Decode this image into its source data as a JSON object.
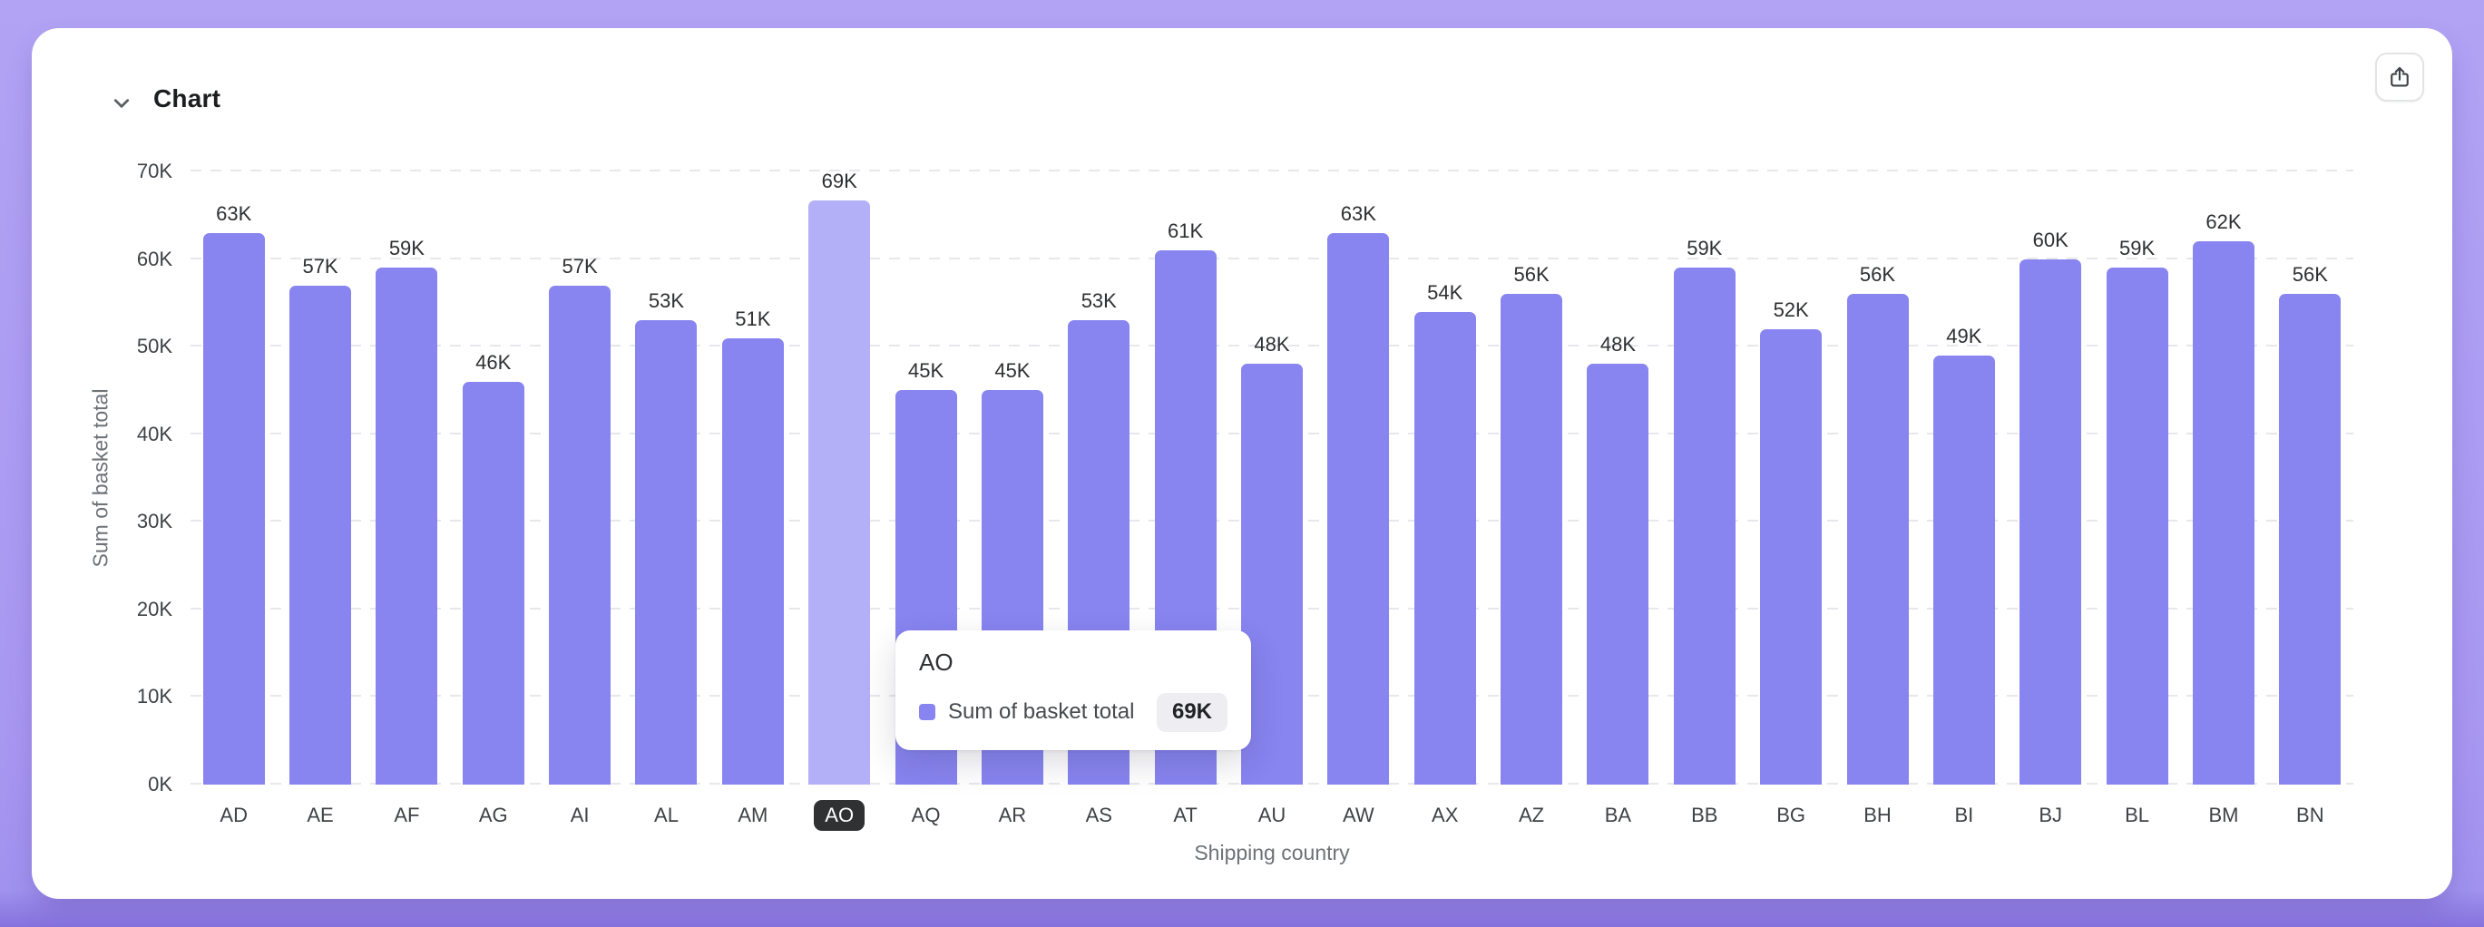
{
  "header": {
    "title": "Chart"
  },
  "colors": {
    "bar": "#8884f0",
    "bar_highlight": "#b4b0f8",
    "grid": "#e7e7ec",
    "highlight_badge_bg": "#2f3133",
    "tooltip_value_badge_bg": "#ededf2",
    "page_background": "#a897f1"
  },
  "chart_data": {
    "type": "bar",
    "title": "Chart",
    "xlabel": "Shipping country",
    "ylabel": "Sum of basket total",
    "series_name": "Sum of basket total",
    "categories": [
      "AD",
      "AE",
      "AF",
      "AG",
      "AI",
      "AL",
      "AM",
      "AO",
      "AQ",
      "AR",
      "AS",
      "AT",
      "AU",
      "AW",
      "AX",
      "AZ",
      "BA",
      "BB",
      "BG",
      "BH",
      "BI",
      "BJ",
      "BL",
      "BM",
      "BN"
    ],
    "values": [
      63,
      57,
      59,
      46,
      57,
      53,
      51,
      69,
      45,
      45,
      53,
      61,
      48,
      63,
      54,
      56,
      48,
      59,
      52,
      56,
      49,
      60,
      59,
      62,
      56
    ],
    "value_labels": [
      "63K",
      "57K",
      "59K",
      "46K",
      "57K",
      "53K",
      "51K",
      "69K",
      "45K",
      "45K",
      "53K",
      "61K",
      "48K",
      "63K",
      "54K",
      "56K",
      "48K",
      "59K",
      "52K",
      "56K",
      "49K",
      "60K",
      "59K",
      "62K",
      "56K"
    ],
    "unit": "K",
    "ylim": [
      0,
      70
    ],
    "ytick_labels": [
      "0K",
      "10K",
      "20K",
      "30K",
      "40K",
      "50K",
      "60K",
      "70K"
    ],
    "grid": "horizontal-dashed",
    "legend_position": "none",
    "highlighted_category": "AO"
  },
  "tooltip": {
    "title": "AO",
    "series": "Sum of basket total",
    "value": "69K"
  }
}
